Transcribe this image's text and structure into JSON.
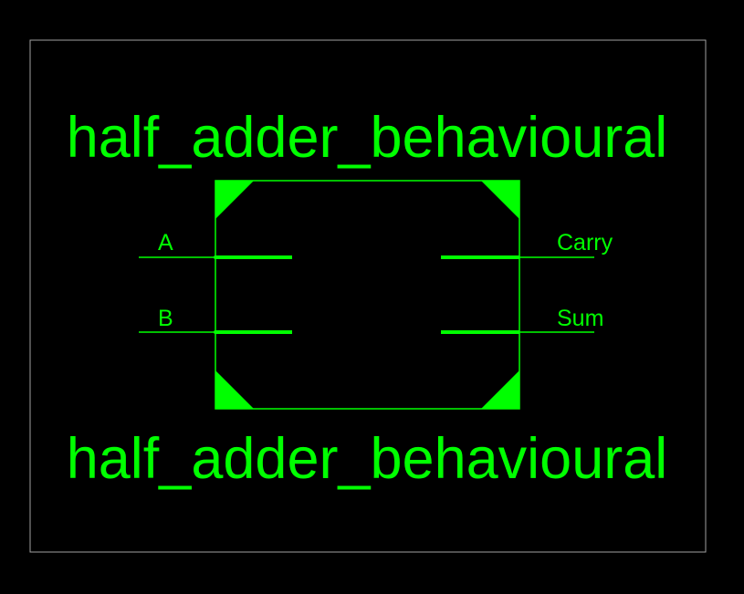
{
  "symbol": {
    "name_top": "half_adder_behavioural",
    "name_bottom": "half_adder_behavioural",
    "inputs": [
      "A",
      "B"
    ],
    "outputs": [
      "Carry",
      "Sum"
    ]
  },
  "colors": {
    "background": "#000000",
    "symbol": "#00ff00",
    "frame": "#a0a0a0"
  }
}
